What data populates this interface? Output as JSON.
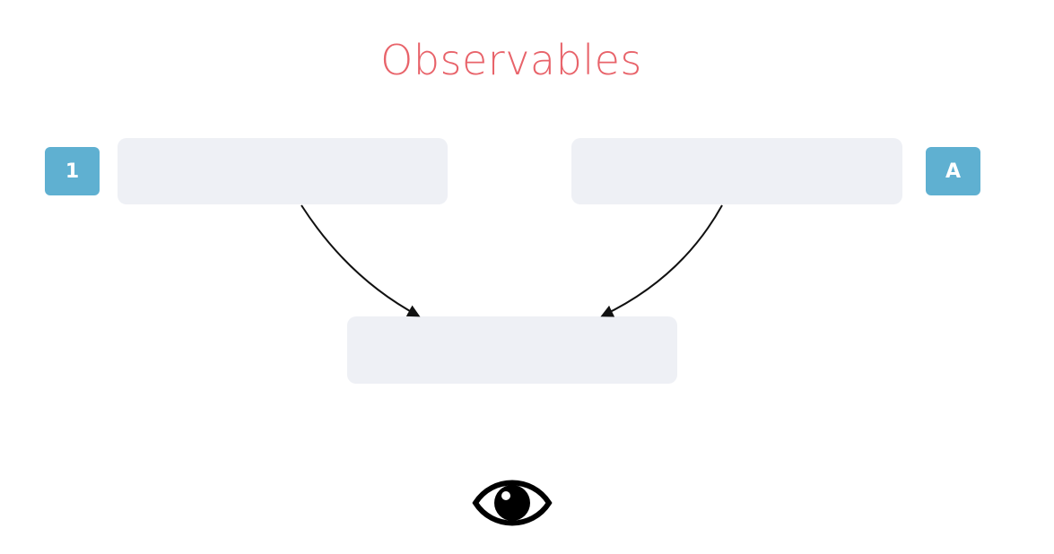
{
  "title": "Observables",
  "colors": {
    "title": "#e8636a",
    "badge": "#5fb0d1",
    "box": "#eef0f5",
    "arrow": "#111111",
    "eye": "#000000"
  },
  "left_stream": {
    "badge_label": "1"
  },
  "right_stream": {
    "badge_label": "A"
  },
  "observer": {
    "icon": "eye-icon"
  }
}
